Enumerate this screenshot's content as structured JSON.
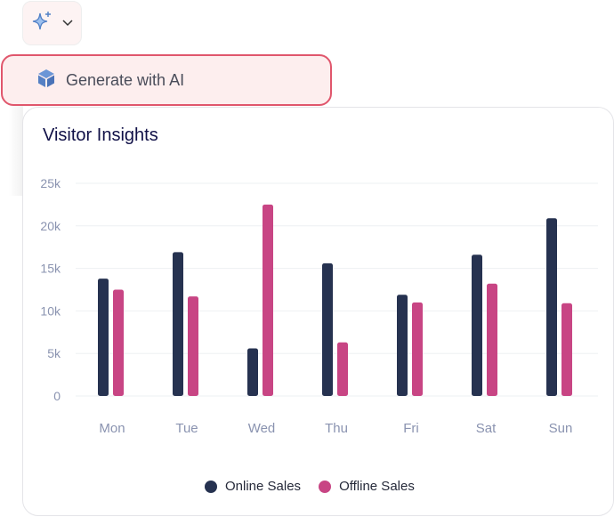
{
  "toolbar": {
    "ai_icon": "sparkle-icon",
    "dropdown_icon": "chevron-down-icon"
  },
  "menu": {
    "generate_label": "Generate with AI",
    "generate_icon": "cube-icon"
  },
  "colors": {
    "online": "#263250",
    "offline": "#C84584",
    "accent_border": "#E0566C"
  },
  "chart_data": {
    "type": "bar",
    "title": "Visitor Insights",
    "categories": [
      "Mon",
      "Tue",
      "Wed",
      "Thu",
      "Fri",
      "Sat",
      "Sun"
    ],
    "series": [
      {
        "name": "Online Sales",
        "values": [
          13800,
          16900,
          5600,
          15600,
          11900,
          16600,
          20900
        ]
      },
      {
        "name": "Offline Sales",
        "values": [
          12500,
          11700,
          22500,
          6300,
          11000,
          13200,
          10900
        ]
      }
    ],
    "yticks": [
      "0",
      "5k",
      "10k",
      "15k",
      "20k",
      "25k"
    ],
    "ylim": [
      0,
      25000
    ],
    "grid": true,
    "legend": "bottom-center",
    "xlabel": "",
    "ylabel": ""
  }
}
